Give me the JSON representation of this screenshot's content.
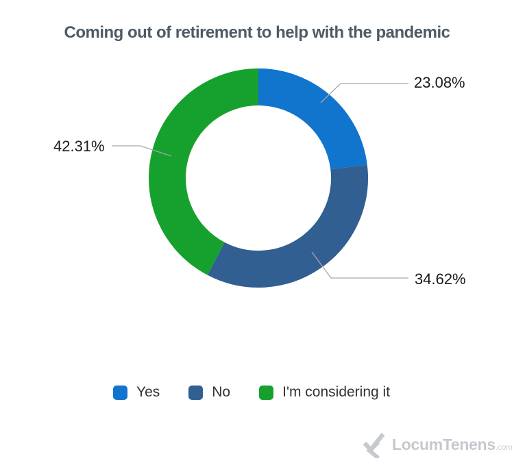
{
  "title": {
    "text": "Coming out of retirement to help with the pandemic",
    "color": "#4e5a67"
  },
  "chart_data": {
    "type": "donut",
    "title": "Coming out of retirement to help with the pandemic",
    "direction": "clockwise",
    "start_angle_deg": 0,
    "donut_hole_ratio": 0.66,
    "legend_position": "bottom",
    "grid": false,
    "series": [
      {
        "name": "Yes",
        "value": 23.08,
        "data_label": "23.08%",
        "color": "#1174cd"
      },
      {
        "name": "No",
        "value": 34.62,
        "data_label": "34.62%",
        "color": "#315f91"
      },
      {
        "name": "I'm considering it",
        "value": 42.31,
        "data_label": "42.31%",
        "color": "#16a12e"
      }
    ]
  },
  "branding": {
    "text": "LocumTenens",
    "suffix": ".com",
    "icon": "locumtenens-chevron-mark",
    "color": "#c5c9ce"
  }
}
